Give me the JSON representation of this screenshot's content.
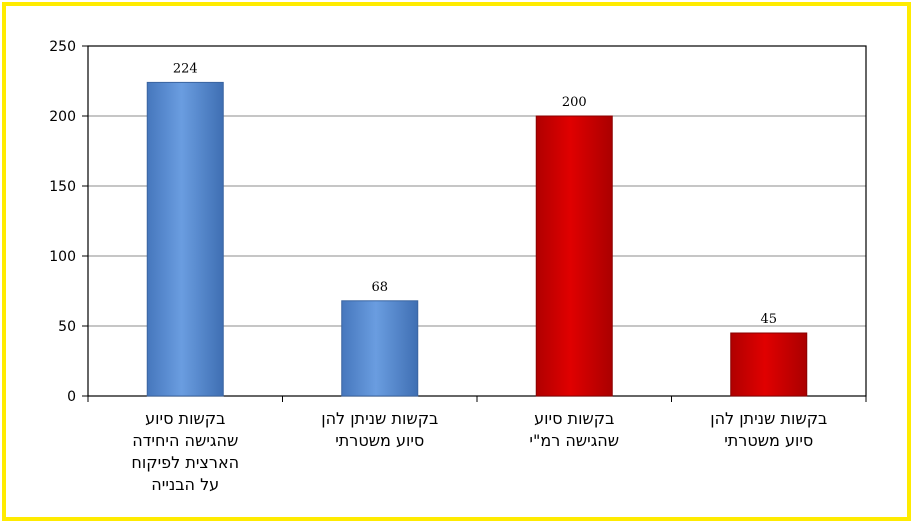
{
  "chart_data": {
    "type": "bar",
    "categories": [
      [
        "בקשות סיוע",
        "שהגישה היחידה",
        "הארצית לפיקוח",
        "על הבנייה"
      ],
      [
        "בקשות שניתן להן",
        "סיוע משטרתי"
      ],
      [
        "בקשות סיוע",
        "שהגישה רמ\"י"
      ],
      [
        "בקשות שניתן להן",
        "סיוע משטרתי"
      ]
    ],
    "values": [
      224,
      68,
      200,
      45
    ],
    "bar_colors": [
      "#5b8fd4",
      "#5b8fd4",
      "#cc0000",
      "#cc0000"
    ],
    "ylim": [
      0,
      250
    ],
    "yticks": [
      0,
      50,
      100,
      150,
      200,
      250
    ],
    "grid": true,
    "title": "",
    "xlabel": "",
    "ylabel": ""
  }
}
